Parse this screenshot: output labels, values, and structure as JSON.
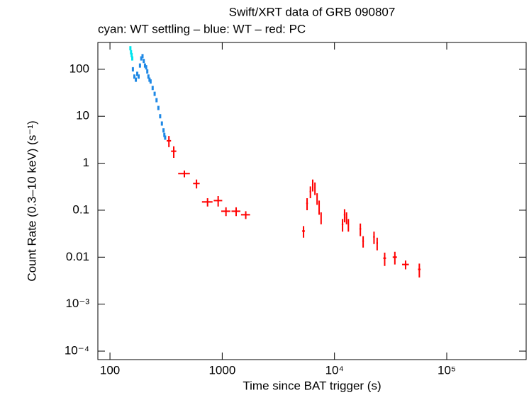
{
  "chart_data": {
    "type": "scatter",
    "title": "Swift/XRT data of GRB 090807",
    "subtitle": "cyan: WT settling – blue: WT – red: PC",
    "x_label": "Time since BAT trigger (s)",
    "y_label": "Count Rate (0.3–10 keV) (s⁻¹)",
    "x_log": true,
    "y_log": true,
    "xlim": [
      78,
      510000
    ],
    "ylim": [
      6.6e-05,
      372
    ],
    "xticks": [
      100,
      1000,
      {
        "value": 10000,
        "label": "10⁴"
      },
      {
        "value": 100000,
        "label": "10⁵"
      }
    ],
    "yticks": [
      {
        "value": 0.0001,
        "label": "10⁻⁴"
      },
      {
        "value": 0.001,
        "label": "10⁻³"
      },
      0.01,
      0.1,
      1,
      10,
      100
    ],
    "series": [
      {
        "name": "WT settling",
        "color": "#00e5ee",
        "x": [
          152,
          154,
          156,
          158
        ],
        "values": [
          280,
          230,
          200,
          170
        ]
      },
      {
        "name": "WT",
        "color": "#1e88e5",
        "x": [
          160,
          165,
          170,
          175,
          180,
          185,
          190,
          195,
          200,
          205,
          210,
          215,
          220,
          225,
          230,
          240,
          250,
          260,
          270,
          280,
          290,
          300,
          305,
          310
        ],
        "values": [
          100,
          70,
          60,
          80,
          70,
          120,
          170,
          190,
          150,
          120,
          110,
          90,
          70,
          60,
          55,
          40,
          30,
          22,
          15,
          10,
          7,
          5,
          4,
          3.5
        ]
      },
      {
        "name": "PC",
        "color": "#ff0000",
        "x": [
          335,
          370,
          460,
          590,
          740,
          920,
          1080,
          1330,
          1620,
          5300,
          5700,
          6100,
          6400,
          6700,
          7000,
          7300,
          7600,
          11800,
          12300,
          12800,
          13300,
          17000,
          18000,
          22500,
          24000,
          28000,
          34500,
          43000,
          57000
        ],
        "xerr": [
          15,
          20,
          55,
          40,
          80,
          80,
          100,
          120,
          150,
          150,
          100,
          100,
          100,
          100,
          100,
          100,
          100,
          200,
          200,
          200,
          200,
          300,
          300,
          400,
          400,
          800,
          1500,
          3000,
          1500
        ],
        "values": [
          3.0,
          1.8,
          0.6,
          0.37,
          0.15,
          0.16,
          0.095,
          0.095,
          0.08,
          0.036,
          0.14,
          0.25,
          0.35,
          0.3,
          0.18,
          0.12,
          0.07,
          0.05,
          0.08,
          0.07,
          0.05,
          0.04,
          0.022,
          0.027,
          0.02,
          0.0095,
          0.01,
          0.007,
          0.0055
        ],
        "yerr": [
          0.8,
          0.5,
          0.1,
          0.08,
          0.03,
          0.04,
          0.02,
          0.02,
          0.015,
          0.01,
          0.04,
          0.07,
          0.1,
          0.09,
          0.05,
          0.04,
          0.02,
          0.015,
          0.025,
          0.02,
          0.015,
          0.012,
          0.006,
          0.008,
          0.006,
          0.003,
          0.003,
          0.0015,
          0.0018
        ]
      }
    ]
  }
}
